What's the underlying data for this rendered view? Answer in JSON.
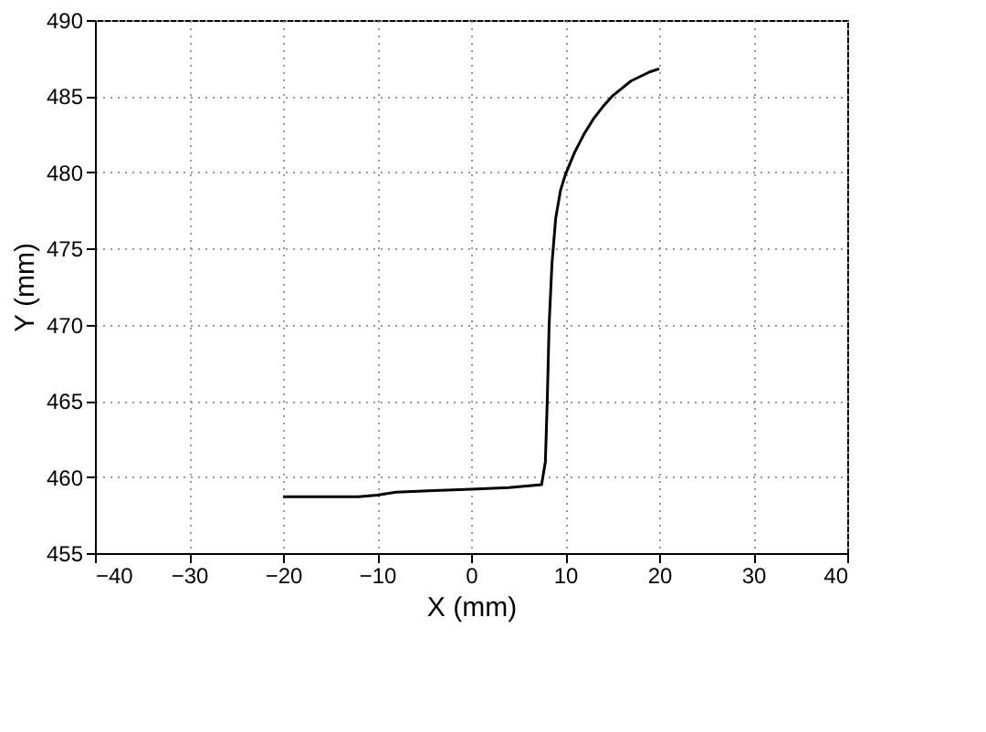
{
  "chart_data": {
    "type": "line",
    "xlabel": "X (mm)",
    "ylabel": "Y (mm)",
    "xlim": [
      -40,
      40
    ],
    "xticks": [
      -40,
      -30,
      -20,
      -10,
      0,
      10,
      20,
      30,
      40
    ],
    "ylim": [
      455,
      490
    ],
    "yticks": [
      455,
      460,
      465,
      470,
      475,
      480,
      485,
      490
    ],
    "grid": true,
    "marker": "none",
    "line_style": "solid",
    "series": [
      {
        "color": "#000000",
        "x": [
          -20,
          -16,
          -12,
          -10,
          -8,
          -4,
          0,
          4,
          7.5,
          7.9,
          8.1,
          8.3,
          8.6,
          9,
          9.5,
          10,
          11,
          12,
          13,
          14,
          15,
          16,
          17,
          18,
          19,
          20
        ],
        "values": [
          458.7,
          458.7,
          458.7,
          458.8,
          459.0,
          459.1,
          459.2,
          459.3,
          459.5,
          461,
          465,
          470,
          474,
          477,
          478.8,
          479.8,
          481.3,
          482.5,
          483.5,
          484.3,
          485.0,
          485.5,
          486.0,
          486.3,
          486.6,
          486.8
        ]
      }
    ]
  }
}
